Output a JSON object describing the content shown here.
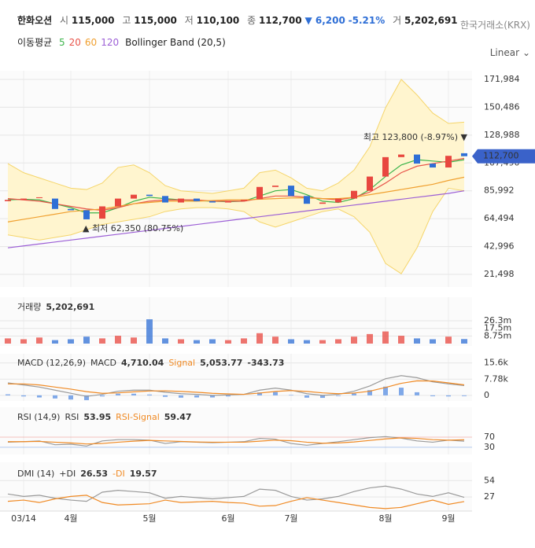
{
  "header": {
    "name": "한화오션",
    "open_label": "시",
    "open": "115,000",
    "high_label": "고",
    "high": "115,000",
    "low_label": "저",
    "low": "110,100",
    "close_label": "종",
    "close": "112,700",
    "change": "▼ 6,200",
    "change_pct": "-5.21%",
    "volume_label": "거",
    "volume": "5,202,691",
    "exchange": "한국거래소(KRX)",
    "scale_mode": "Linear"
  },
  "chart_data": [
    {
      "type": "candlestick",
      "legend_title": "이동평균",
      "categories": [
        null,
        "03/14",
        null,
        null,
        "4월",
        null,
        null,
        null,
        null,
        "5월",
        null,
        null,
        null,
        null,
        "6월",
        null,
        null,
        null,
        "7월",
        null,
        null,
        null,
        null,
        null,
        "8월",
        null,
        null,
        null,
        "9월",
        null
      ],
      "open": [
        78000,
        79000,
        80500,
        80000,
        72000,
        71000,
        64500,
        74000,
        80000,
        83000,
        82000,
        77000,
        80000,
        78000,
        77000,
        78000,
        79500,
        89000,
        90000,
        82000,
        76000,
        77000,
        80000,
        86000,
        97000,
        112000,
        114000,
        107000,
        104000,
        115000
      ],
      "close": [
        79000,
        80000,
        81000,
        72000,
        71000,
        64000,
        74000,
        80000,
        83000,
        82000,
        77000,
        80000,
        78000,
        77000,
        78000,
        79000,
        89000,
        90000,
        82000,
        76000,
        77000,
        80000,
        86000,
        97000,
        112000,
        114000,
        107000,
        104000,
        113000,
        112700
      ],
      "up_color": "#e8473f",
      "down_color": "#2f6fd6",
      "series": [
        {
          "name": "5",
          "color": "#3cb44b",
          "values": [
            79000,
            79500,
            79000,
            76000,
            73000,
            69000,
            69000,
            73000,
            78000,
            81000,
            80000,
            79000,
            78500,
            78000,
            77500,
            78000,
            82000,
            86000,
            87000,
            83000,
            78000,
            77000,
            80000,
            87000,
            97000,
            106000,
            110000,
            109000,
            108000,
            110000
          ]
        },
        {
          "name": "20",
          "color": "#e8544a",
          "values": [
            80000,
            79000,
            78000,
            76000,
            74000,
            72000,
            71000,
            73000,
            76000,
            78000,
            79000,
            79000,
            79000,
            78000,
            78000,
            78000,
            80000,
            82000,
            82000,
            81000,
            80000,
            79000,
            81000,
            85000,
            92000,
            100000,
            105000,
            107000,
            109000,
            111000
          ]
        },
        {
          "name": "60",
          "color": "#f0a030",
          "values": [
            62000,
            64000,
            66000,
            68000,
            70000,
            71000,
            72000,
            74000,
            76000,
            77000,
            78000,
            78000,
            78000,
            78500,
            79000,
            79000,
            79500,
            80000,
            80500,
            80500,
            80000,
            80000,
            81000,
            83000,
            85000,
            87000,
            89000,
            91000,
            94000,
            96500
          ]
        },
        {
          "name": "120",
          "color": "#9c5fd6",
          "values": [
            42000,
            43500,
            45000,
            46500,
            48000,
            49500,
            51000,
            52500,
            54000,
            55500,
            57000,
            58500,
            60000,
            61500,
            63000,
            64500,
            66000,
            67500,
            69000,
            70500,
            72000,
            73500,
            75000,
            76500,
            78000,
            79500,
            81000,
            82500,
            84000,
            86000
          ]
        }
      ],
      "band": {
        "name": "Bollinger Band (20,5)",
        "color": "#f5d56a",
        "fill": "#fff5cf",
        "upper": [
          107000,
          100000,
          96000,
          92000,
          88000,
          87000,
          92000,
          104000,
          106000,
          100000,
          90000,
          86000,
          85000,
          84000,
          86000,
          88000,
          100000,
          102000,
          96000,
          88000,
          86000,
          92000,
          102000,
          120000,
          150000,
          172000,
          160000,
          146000,
          138000,
          139000
        ],
        "lower": [
          52000,
          50000,
          48000,
          50000,
          52000,
          56000,
          60000,
          62000,
          64000,
          66000,
          70000,
          72000,
          73000,
          73000,
          72000,
          70000,
          62000,
          58000,
          62000,
          66000,
          70000,
          72000,
          66000,
          54000,
          30000,
          22000,
          42000,
          70000,
          88000,
          86000
        ]
      },
      "annotations": [
        "최고 123,800 (-8.97%) ▼",
        "▲ 최저 62,350 (80.75%)"
      ],
      "ylim": [
        11790,
        178660
      ],
      "yticks": [
        {
          "value": 171984,
          "label": "171,984"
        },
        {
          "value": 150486,
          "label": "150,486"
        },
        {
          "value": 128988,
          "label": "128,988"
        },
        {
          "value": 107490,
          "label": "107,490"
        },
        {
          "value": 85992,
          "label": "85,992"
        },
        {
          "value": 64494,
          "label": "64,494"
        },
        {
          "value": 42996,
          "label": "42,996"
        },
        {
          "value": 21498,
          "label": "21,498"
        }
      ]
    },
    {
      "type": "bar",
      "title": "거래량",
      "value_label": "5,202,691",
      "values": [
        6000000,
        5000000,
        7000000,
        4000000,
        5000000,
        8000000,
        6000000,
        9000000,
        7000000,
        28000000,
        6000000,
        5000000,
        4000000,
        5000000,
        4000000,
        6000000,
        12000000,
        8000000,
        5000000,
        4000000,
        4000000,
        5000000,
        8000000,
        11000000,
        14000000,
        9000000,
        6000000,
        5000000,
        8000000,
        5202691
      ],
      "ylim": [
        0,
        53500000
      ],
      "yticks": [
        {
          "value": 26300000,
          "label": "26.3m"
        },
        {
          "value": 17500000,
          "label": "17.5m"
        },
        {
          "value": 8750000,
          "label": "8.75m"
        }
      ]
    },
    {
      "type": "macd",
      "title": "MACD (12,26,9)",
      "series": [
        {
          "name": "MACD",
          "color": "#9a9a9a",
          "last": "4,710.04",
          "values": [
            6000,
            5000,
            4000,
            2500,
            1000,
            -500,
            500,
            2000,
            2500,
            2500,
            1500,
            800,
            500,
            0,
            200,
            500,
            2500,
            3500,
            2500,
            800,
            0,
            500,
            2000,
            4500,
            8000,
            9500,
            8500,
            6500,
            5500,
            4710.04
          ]
        },
        {
          "name": "Signal",
          "color": "#f08a24",
          "last": "5,053.77",
          "values": [
            5500,
            5500,
            5000,
            4000,
            3000,
            1800,
            1000,
            1200,
            1700,
            2100,
            2200,
            1900,
            1500,
            1000,
            700,
            500,
            1100,
            1900,
            2300,
            1900,
            1200,
            800,
            1100,
            2000,
            3800,
            5800,
            7000,
            6900,
            6000,
            5053.77
          ]
        }
      ],
      "histogram": {
        "color": "#7fa8e8",
        "last": "-343.73",
        "values": [
          500,
          -500,
          -1000,
          -1500,
          -2000,
          -2300,
          -500,
          800,
          800,
          400,
          -700,
          -1100,
          -1000,
          -1000,
          -500,
          0,
          1400,
          1600,
          200,
          -1100,
          -1200,
          -300,
          900,
          2500,
          4200,
          3700,
          1500,
          -400,
          -500,
          -343.73
        ]
      },
      "ylim": [
        -2700,
        20000
      ],
      "yticks": [
        {
          "value": 15600,
          "label": "15.6k"
        },
        {
          "value": 7780,
          "label": "7.78k"
        },
        0
      ]
    },
    {
      "type": "line",
      "title": "RSI (14,9)",
      "series": [
        {
          "name": "RSI",
          "color": "#9a9a9a",
          "last": "53.95",
          "values": [
            50,
            52,
            55,
            40,
            42,
            35,
            55,
            60,
            60,
            58,
            45,
            52,
            50,
            48,
            50,
            52,
            65,
            62,
            45,
            38,
            45,
            52,
            60,
            68,
            72,
            66,
            55,
            50,
            58,
            53.95
          ]
        },
        {
          "name": "RSI-Signal",
          "color": "#f08a24",
          "last": "59.47",
          "values": [
            52,
            52,
            53,
            50,
            47,
            43,
            45,
            50,
            54,
            57,
            55,
            53,
            51,
            50,
            50,
            50,
            54,
            58,
            56,
            50,
            46,
            47,
            51,
            57,
            63,
            67,
            65,
            60,
            58,
            59.47
          ]
        }
      ],
      "ylim": [
        2,
        187
      ],
      "yticks": [
        70,
        30
      ],
      "ytick_colors": [
        "#e8544a",
        "#2f6fd6"
      ]
    },
    {
      "type": "line",
      "title": "DMI (14)",
      "series": [
        {
          "name": "+DI",
          "color": "#9a9a9a",
          "last": "26.53",
          "values": [
            32,
            28,
            30,
            25,
            22,
            20,
            35,
            38,
            36,
            34,
            25,
            28,
            26,
            24,
            26,
            28,
            40,
            38,
            28,
            22,
            24,
            28,
            36,
            42,
            45,
            40,
            32,
            28,
            34,
            26.53
          ]
        },
        {
          "name": "-DI",
          "color": "#f08a24",
          "last": "19.57",
          "values": [
            20,
            22,
            18,
            24,
            28,
            30,
            18,
            14,
            15,
            16,
            22,
            18,
            19,
            20,
            18,
            17,
            12,
            13,
            20,
            26,
            22,
            18,
            14,
            10,
            8,
            10,
            16,
            22,
            15,
            19.57
          ]
        }
      ],
      "ylim": [
        4,
        84
      ],
      "yticks": [
        54,
        27
      ]
    }
  ]
}
